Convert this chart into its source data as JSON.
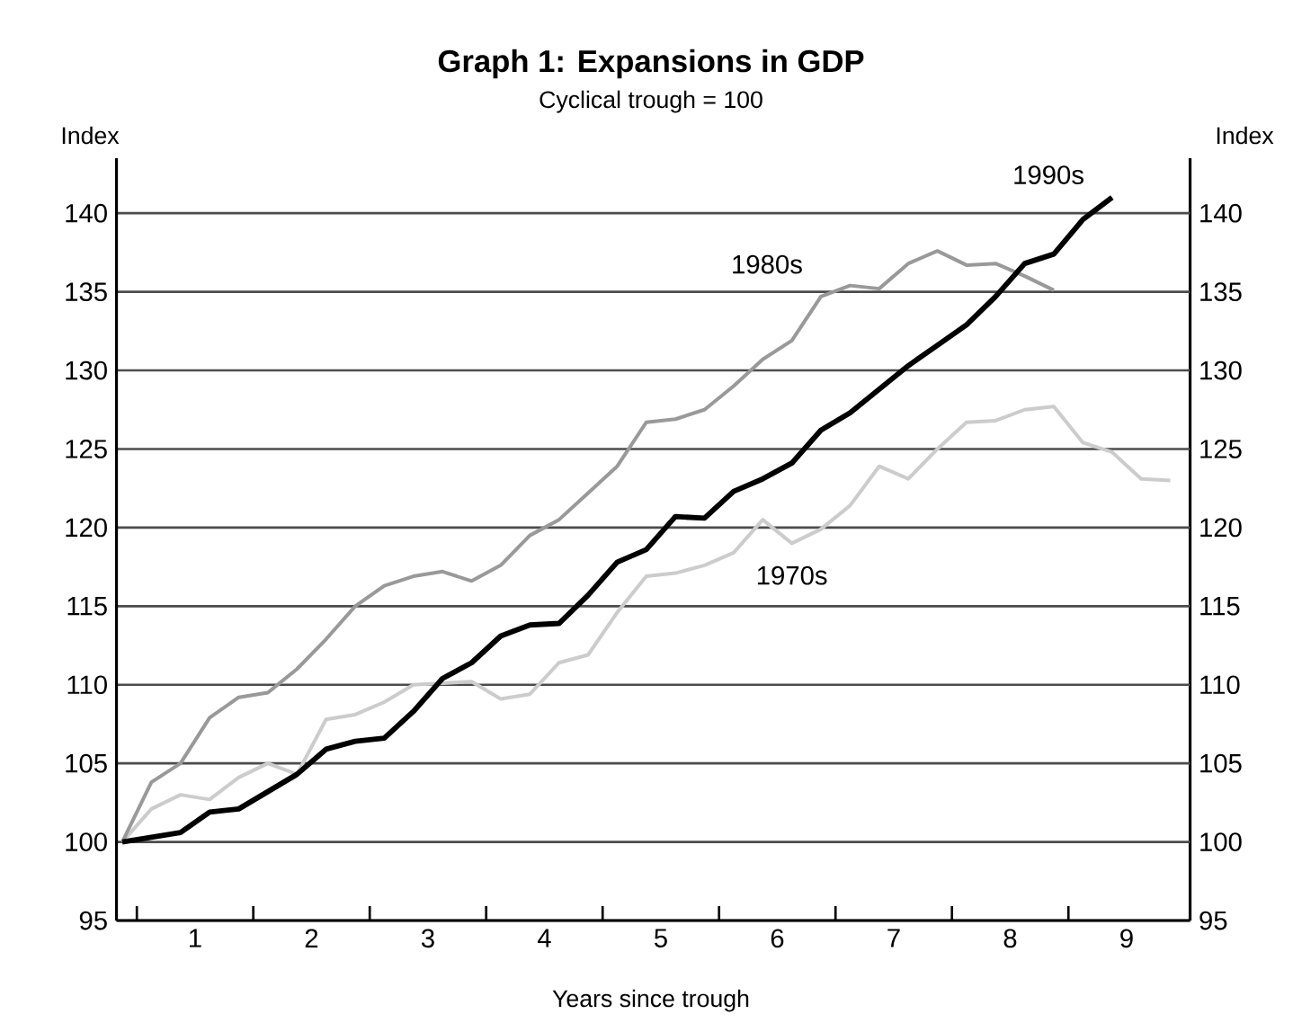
{
  "chart_data": {
    "type": "line",
    "title": "Graph 1: Expansions in GDP",
    "subtitle": "Cyclical trough = 100",
    "xlabel": "Years since trough",
    "ylabel": "Index",
    "y2label": "Index",
    "x": [
      0,
      0.25,
      0.5,
      0.75,
      1,
      1.25,
      1.5,
      1.75,
      2,
      2.25,
      2.5,
      2.75,
      3,
      3.25,
      3.5,
      3.75,
      4,
      4.25,
      4.5,
      4.75,
      5,
      5.25,
      5.5,
      5.75,
      6,
      6.25,
      6.5,
      6.75,
      7,
      7.25,
      7.5,
      7.75,
      8,
      8.25,
      8.5,
      8.75,
      9
    ],
    "series": [
      {
        "name": "1990s",
        "color": "#000000",
        "values": [
          100,
          100.3,
          100.6,
          101.9,
          102.1,
          103.2,
          104.3,
          105.9,
          106.4,
          106.6,
          108.3,
          110.4,
          111.4,
          113.1,
          113.8,
          113.9,
          115.7,
          117.8,
          118.6,
          120.7,
          120.6,
          122.3,
          123.1,
          124.1,
          126.2,
          127.3,
          128.8,
          130.3,
          131.6,
          132.9,
          134.7,
          136.8,
          137.4,
          139.6,
          141.0,
          null,
          null
        ]
      },
      {
        "name": "1980s",
        "color": "#999999",
        "values": [
          100,
          103.8,
          105.0,
          107.9,
          109.2,
          109.5,
          111.0,
          112.9,
          115.0,
          116.3,
          116.9,
          117.2,
          116.6,
          117.6,
          119.5,
          120.5,
          122.2,
          123.9,
          126.7,
          126.9,
          127.5,
          129.0,
          130.7,
          131.9,
          134.7,
          135.4,
          135.2,
          136.8,
          137.6,
          136.7,
          136.8,
          136.0,
          135.1,
          null,
          null,
          null,
          null
        ]
      },
      {
        "name": "1970s",
        "color": "#cccccc",
        "values": [
          100,
          102.1,
          103.0,
          102.7,
          104.1,
          105.0,
          104.3,
          107.8,
          108.1,
          108.9,
          110.0,
          110.1,
          110.2,
          109.1,
          109.4,
          111.4,
          111.9,
          114.6,
          116.9,
          117.1,
          117.6,
          118.4,
          120.5,
          119.0,
          119.9,
          121.4,
          123.9,
          123.1,
          125.0,
          126.7,
          126.8,
          127.5,
          127.7,
          125.4,
          124.8,
          123.1,
          123.0
        ]
      }
    ],
    "xlim": [
      -0.05,
      9.17
    ],
    "xticks": [
      {
        "value": 0.125,
        "label": null
      },
      {
        "value": 0.625,
        "label": "1"
      },
      {
        "value": 1.125,
        "label": null
      },
      {
        "value": 1.625,
        "label": "2"
      },
      {
        "value": 2.125,
        "label": null
      },
      {
        "value": 2.625,
        "label": "3"
      },
      {
        "value": 3.125,
        "label": null
      },
      {
        "value": 3.625,
        "label": "4"
      },
      {
        "value": 4.125,
        "label": null
      },
      {
        "value": 4.625,
        "label": "5"
      },
      {
        "value": 5.125,
        "label": null
      },
      {
        "value": 5.625,
        "label": "6"
      },
      {
        "value": 6.125,
        "label": null
      },
      {
        "value": 6.625,
        "label": "7"
      },
      {
        "value": 7.125,
        "label": null
      },
      {
        "value": 7.625,
        "label": "8"
      },
      {
        "value": 8.125,
        "label": null
      },
      {
        "value": 8.625,
        "label": "9"
      }
    ],
    "ylim": [
      95,
      143.5
    ],
    "yticks": [
      95,
      100,
      105,
      110,
      115,
      120,
      125,
      130,
      135,
      140
    ],
    "y2lim": [
      95,
      143.5
    ],
    "y2ticks": [
      95,
      100,
      105,
      110,
      115,
      120,
      125,
      130,
      135,
      140
    ],
    "grid": "y",
    "marker": "none",
    "line_style": "solid"
  }
}
